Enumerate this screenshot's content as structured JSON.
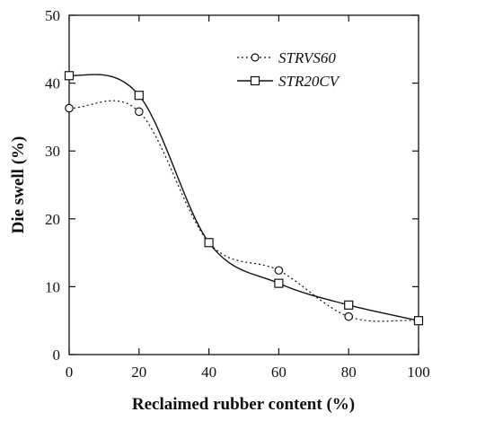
{
  "chart_data": {
    "type": "line",
    "title": "",
    "xlabel": "Reclaimed rubber content (%)",
    "ylabel": "Die swell (%)",
    "xlim": [
      0,
      100
    ],
    "ylim": [
      0,
      50
    ],
    "xticks": [
      "0",
      "20",
      "40",
      "60",
      "80",
      "100"
    ],
    "yticks": [
      "0",
      "10",
      "20",
      "30",
      "40",
      "50"
    ],
    "grid": false,
    "legend_position": "top-right",
    "series": [
      {
        "name": "STRVS60",
        "marker": "circle",
        "line_style": "dotted",
        "color": "#111111",
        "x": [
          0,
          20,
          40,
          60,
          80,
          100
        ],
        "y": [
          36.3,
          35.8,
          16.5,
          12.4,
          5.6,
          5.0
        ]
      },
      {
        "name": "STR20CV",
        "marker": "square",
        "line_style": "solid",
        "color": "#111111",
        "x": [
          0,
          20,
          40,
          60,
          80,
          100
        ],
        "y": [
          41.1,
          38.2,
          16.5,
          10.5,
          7.3,
          5.0
        ]
      }
    ]
  }
}
